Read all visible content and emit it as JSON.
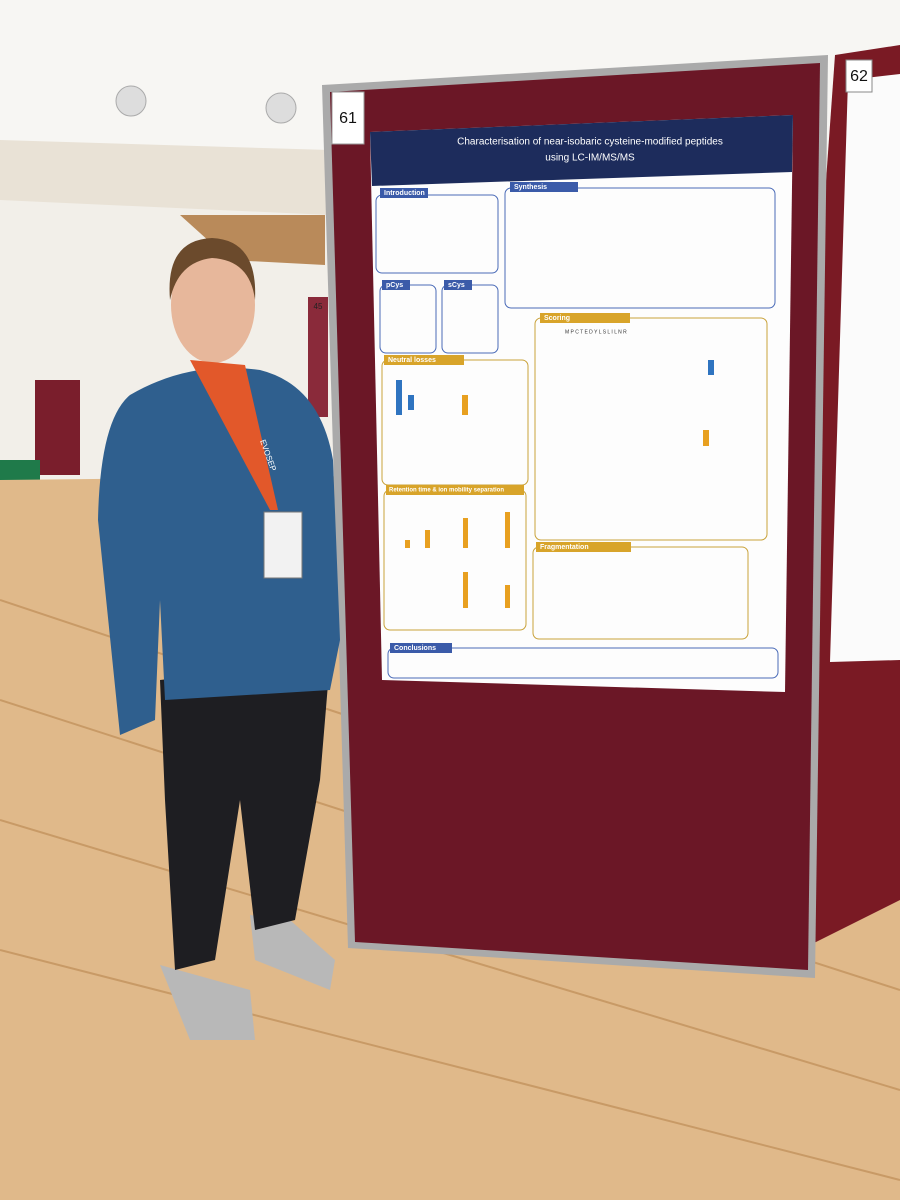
{
  "board_labels": {
    "left": "61",
    "right": "62",
    "background": "45"
  },
  "poster": {
    "title_line1": "Characterisation of near-isobaric cysteine-modified peptides",
    "title_line2": "using LC-IM/MS/MS",
    "sections": [
      "Introduction",
      "Synthesis",
      "pCys",
      "sCys",
      "Neutral losses",
      "Scoring",
      "Retention time & ion mobility separation",
      "Fragmentation",
      "Conclusions"
    ],
    "peptide": "M P C T E D Y L S L I L N R"
  },
  "lanyard": "EVOSEP"
}
